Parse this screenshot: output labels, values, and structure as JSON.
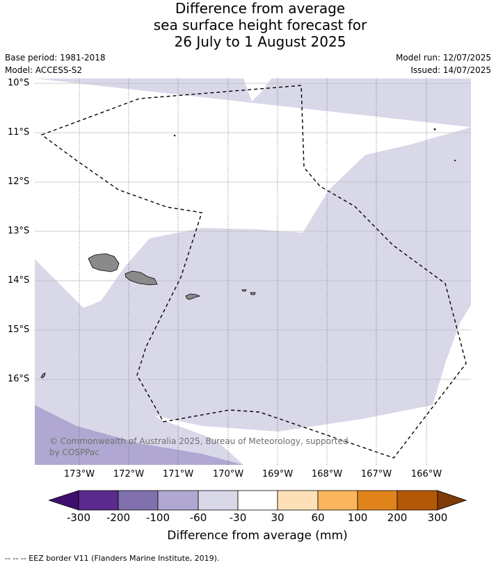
{
  "header": {
    "title_lines": [
      "Difference from average",
      "sea surface height forecast for",
      "26 July to 1 August 2025"
    ],
    "base_period": "Base period: 1981-2018",
    "model": "Model: ACCESS-S2",
    "model_run": "Model run: 12/07/2025",
    "issued": "Issued: 14/07/2025"
  },
  "map": {
    "lat_labels": [
      "10°S",
      "11°S",
      "12°S",
      "13°S",
      "14°S",
      "15°S",
      "16°S"
    ],
    "lon_labels": [
      "173°W",
      "172°W",
      "171°W",
      "170°W",
      "169°W",
      "168°W",
      "167°W",
      "166°W"
    ],
    "copyright": "© Commonwealth of Australia 2025, Bureau of Meteorology, supported by COSPPac"
  },
  "legend": {
    "ticks": [
      "-300",
      "-200",
      "-100",
      "-60",
      "-30",
      "30",
      "60",
      "100",
      "200",
      "300"
    ],
    "colors": [
      "#3f0f6e",
      "#5a2a8c",
      "#8070ae",
      "#b0a8d2",
      "#d8d8e9",
      "#ffffff",
      "#fde0b8",
      "#f9b65c",
      "#e1831b",
      "#b35806",
      "#7e3b08"
    ],
    "title": "Difference from average (mm)"
  },
  "footer": {
    "eez_note": "--  --  -- EEZ border V11 (Flanders Marine Institute, 2019)."
  }
}
